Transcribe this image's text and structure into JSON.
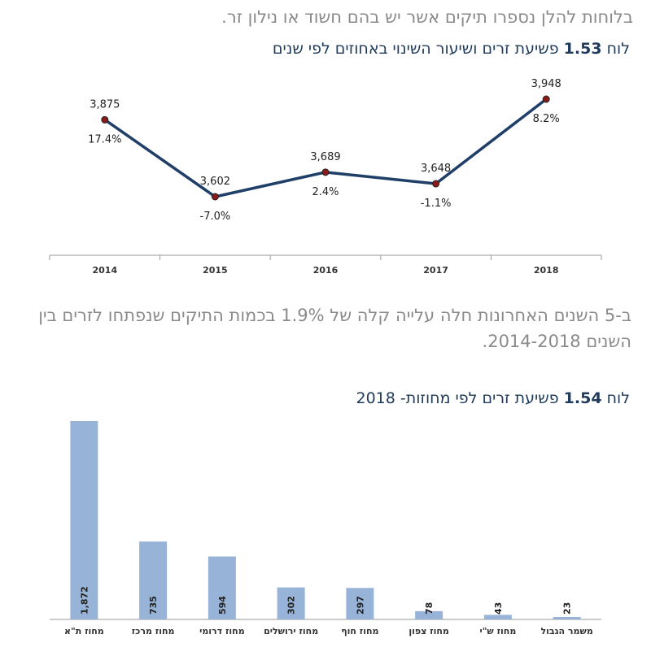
{
  "intro_text": "בלוחות להלן נספרו תיקים אשר יש בהם חשוד או נילון זר.",
  "paragraph": "ב-5 השנים האחרונות חלה עלייה קלה של 1.9% בכמות התיקים שנפתחו לזרים בין השנים 2014-2018.",
  "colors": {
    "line": "#1f3f68",
    "marker": "#8b1a1a",
    "bar": "#97b3d8",
    "title": "#1f3a5a",
    "body_text": "#8a8a8a"
  },
  "chart_data": [
    {
      "type": "line",
      "title_prefix": "לוח",
      "title_number": "1.53",
      "title_text": "פשיעת זרים ושיעור השינוי באחוזים לפי שנים",
      "categories": [
        "2014",
        "2015",
        "2016",
        "2017",
        "2018"
      ],
      "values": [
        3875,
        3602,
        3689,
        3648,
        3948
      ],
      "value_labels": [
        "3,875",
        "3,602",
        "3,689",
        "3,648",
        "3,948"
      ],
      "change_labels": [
        "17.4%",
        "-7.0%",
        "2.4%",
        "-1.1%",
        "8.2%"
      ],
      "ylim": [
        3450,
        4050
      ],
      "grid": false,
      "legend": "none"
    },
    {
      "type": "bar",
      "title_prefix": "לוח",
      "title_number": "1.54",
      "title_text": "פשיעת זרים לפי מחוזות- 2018",
      "categories": [
        "מחוז ת\"א",
        "מחוז מרכז",
        "מחוז דרומי",
        "מחוז ירושלים",
        "מחוז חוף",
        "מחוז צפון",
        "מחוז ש\"י",
        "משמר הגבול"
      ],
      "values": [
        1872,
        735,
        594,
        302,
        297,
        78,
        43,
        23
      ],
      "value_labels": [
        "1,872",
        "735",
        "594",
        "302",
        "297",
        "78",
        "43",
        "23"
      ],
      "ylim": [
        0,
        1900
      ],
      "grid": false,
      "legend": "none"
    }
  ]
}
